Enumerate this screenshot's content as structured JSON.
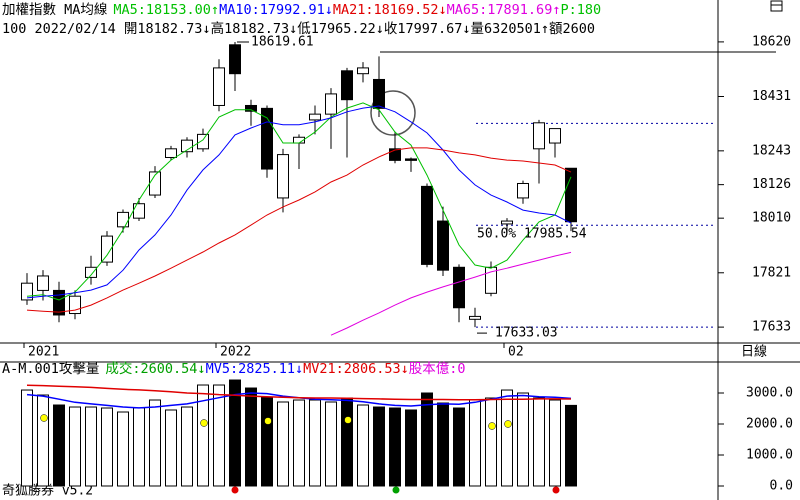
{
  "chart_data": [
    {
      "type": "candlestick",
      "title": "加權指數 MA均線",
      "subtitle": "100 2022/02/14 開18182.73↓高18182.73↓低17965.22↓收17997.67↓量6320501↑額2600",
      "categories": [
        "2021",
        null,
        null,
        null,
        null,
        null,
        null,
        null,
        null,
        null,
        null,
        null,
        "2022",
        null,
        null,
        null,
        null,
        null,
        null,
        null,
        null,
        null,
        null,
        null,
        null,
        null,
        null,
        null,
        null,
        null,
        "02",
        null,
        null,
        null,
        null
      ],
      "open": [
        17727,
        17760,
        17760,
        17680,
        17805,
        17858,
        17980,
        18010,
        18090,
        18220,
        18240,
        18250,
        18400,
        18610,
        18400,
        18390,
        18080,
        18270,
        18350,
        18370,
        18520,
        18510,
        18490,
        18250,
        18215,
        18120,
        18000,
        17840,
        17660,
        17750,
        17990,
        18080,
        18250,
        18270,
        18182.73
      ],
      "high": [
        17820,
        17830,
        17790,
        17760,
        17880,
        17965,
        18040,
        18080,
        18190,
        18260,
        18290,
        18320,
        18560,
        18619.61,
        18420,
        18400,
        18250,
        18300,
        18400,
        18460,
        18530,
        18550,
        18570,
        18310,
        18220,
        18130,
        18050,
        17850,
        17700,
        17860,
        18010,
        18140,
        18350,
        18320,
        18182.73
      ],
      "low": [
        17710,
        17725,
        17650,
        17660,
        17780,
        17845,
        17960,
        18000,
        18080,
        18210,
        18220,
        18240,
        18380,
        18450,
        18330,
        18150,
        18030,
        18180,
        18300,
        18250,
        18220,
        18480,
        18360,
        18200,
        18170,
        17840,
        17810,
        17650,
        17633.03,
        17740,
        17960,
        18060,
        18130,
        18220,
        17965.22
      ],
      "close": [
        17785,
        17810,
        17675,
        17740,
        17840,
        17948,
        18030,
        18060,
        18170,
        18250,
        18280,
        18300,
        18530,
        18510,
        18380,
        18180,
        18230,
        18290,
        18370,
        18440,
        18420,
        18530,
        18390,
        18210,
        18210,
        17850,
        17830,
        17700,
        17670,
        17840,
        18000,
        18130,
        18340,
        18320,
        17997.67
      ],
      "up_color": "#ffffff",
      "down_color": "#000000",
      "series": [
        {
          "name": "MA5:18153.00↑",
          "color": "#00c000",
          "values": [
            17740,
            17745,
            17727,
            17754,
            17813,
            17882,
            17969,
            18073,
            18159,
            18211,
            18246,
            18281,
            18360,
            18385,
            18385,
            18357,
            18270,
            18270,
            18308,
            18360,
            18391,
            18409,
            18385,
            18308,
            18263,
            18159,
            18038,
            17917,
            17848,
            17837,
            17865,
            17934,
            17997,
            18021,
            18153.0
          ]
        },
        {
          "name": "MA10:17992.91↓",
          "color": "#0000ff",
          "values": [
            17734,
            17740,
            17744,
            17752,
            17761,
            17779,
            17830,
            17900,
            17952,
            18021,
            18107,
            18177,
            18229,
            18298,
            18322,
            18343,
            18333,
            18333,
            18343,
            18357,
            18378,
            18391,
            18398,
            18378,
            18343,
            18305,
            18246,
            18177,
            18125,
            18090,
            18066,
            18038,
            18028,
            18021,
            17992.91
          ]
        },
        {
          "name": "MA21:18169.52↓",
          "color": "#e00000",
          "values": [
            17692,
            17688,
            17685,
            17692,
            17709,
            17734,
            17761,
            17785,
            17810,
            17837,
            17865,
            17893,
            17924,
            17952,
            17986,
            18021,
            18049,
            18073,
            18101,
            18135,
            18159,
            18194,
            18222,
            18246,
            18253,
            18253,
            18246,
            18236,
            18229,
            18218,
            18211,
            18208,
            18201,
            18194,
            18169.52
          ]
        },
        {
          "name": "MA65:17891.69↑",
          "color": "#e000e0",
          "values": [
            null,
            null,
            null,
            null,
            null,
            null,
            null,
            null,
            null,
            null,
            null,
            null,
            null,
            null,
            null,
            null,
            null,
            null,
            null,
            17605,
            17630,
            17657,
            17682,
            17709,
            17734,
            17754,
            17772,
            17789,
            17806,
            17824,
            17837,
            17851,
            17865,
            17879,
            17891.69
          ]
        }
      ],
      "annotations": [
        {
          "text": "P:180",
          "color": "#00c000"
        },
        {
          "text": "50.0% 17985.54",
          "color": "#0000c0"
        }
      ],
      "reference_lines": [
        18338.05,
        17985.54,
        17633.03
      ],
      "resistance_line": 18585,
      "ylim": [
        17578,
        18765
      ],
      "yticks": [
        18620,
        18431,
        18243,
        18126,
        18010,
        17821,
        17633
      ],
      "period": "日線"
    },
    {
      "type": "bar",
      "title": "A-M.001攻擊量",
      "series": [
        {
          "name": "成交:2600.54↓",
          "color": "#00a000",
          "type": "bar",
          "values": [
            3096,
            2935,
            2613,
            2548,
            2548,
            2516,
            2387,
            2516,
            2774,
            2452,
            2548,
            3258,
            3258,
            3419,
            3161,
            2871,
            2710,
            2774,
            2774,
            2710,
            2839,
            2613,
            2548,
            2516,
            2452,
            3000,
            2677,
            2516,
            2774,
            2839,
            3096,
            3000,
            2839,
            2774,
            2600.54
          ]
        },
        {
          "name": "MV5:2825.11↓",
          "color": "#0000ff",
          "type": "line",
          "values": [
            2950,
            2900,
            2800,
            2700,
            2650,
            2600,
            2550,
            2520,
            2550,
            2600,
            2650,
            2750,
            2850,
            2950,
            3000,
            2980,
            2900,
            2850,
            2800,
            2780,
            2760,
            2720,
            2650,
            2600,
            2580,
            2620,
            2650,
            2640,
            2700,
            2800,
            2900,
            2920,
            2880,
            2860,
            2825.11
          ]
        },
        {
          "name": "MV21:2806.53↓",
          "color": "#e00000",
          "type": "line",
          "values": [
            3250,
            3240,
            3220,
            3200,
            3180,
            3150,
            3120,
            3100,
            3070,
            3040,
            3000,
            2980,
            2950,
            2930,
            2900,
            2880,
            2860,
            2850,
            2840,
            2840,
            2830,
            2820,
            2810,
            2800,
            2790,
            2790,
            2790,
            2780,
            2780,
            2790,
            2800,
            2800,
            2810,
            2810,
            2806.53
          ]
        }
      ],
      "annotations": [
        {
          "text": "股本億:0",
          "color": "#e000e0"
        }
      ],
      "ylim": [
        -452,
        3581
      ],
      "yticks": [
        {
          "value": 3000,
          "label": "3000.0"
        },
        {
          "value": 2000,
          "label": "2000.0"
        },
        {
          "value": 1000,
          "label": "1000.0"
        },
        {
          "value": 0,
          "label": "0.0"
        }
      ]
    }
  ],
  "footer": "奇狐勝券 v5.2"
}
